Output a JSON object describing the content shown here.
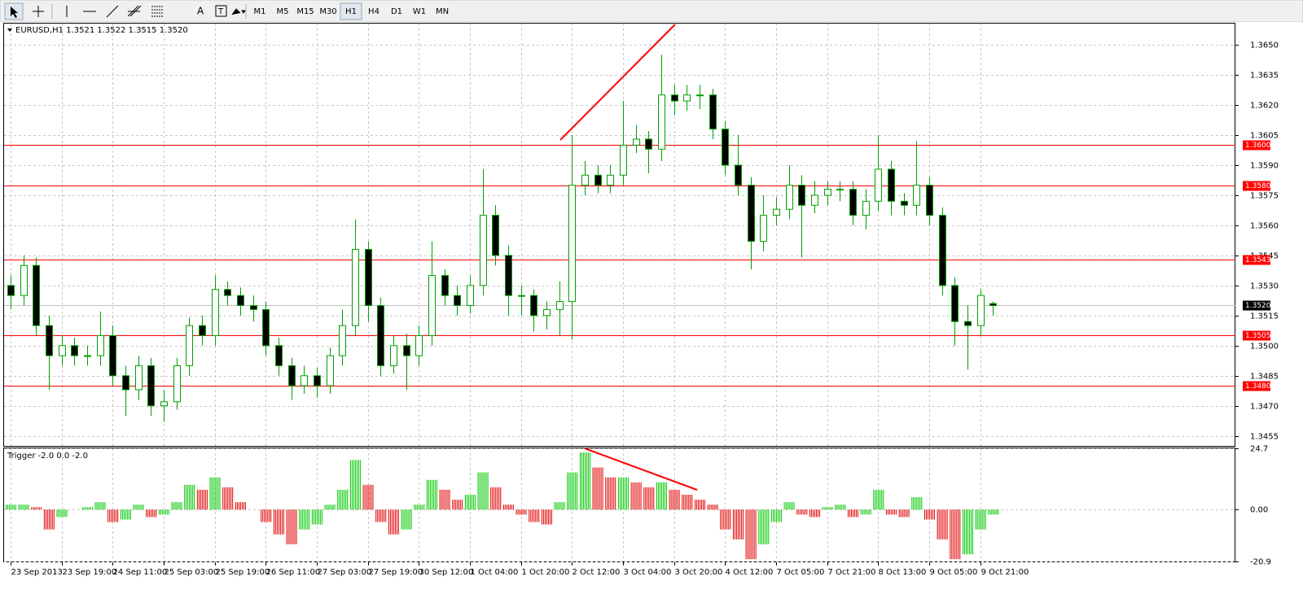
{
  "toolbar": {
    "timeframes": [
      "M1",
      "M5",
      "M15",
      "M30",
      "H1",
      "H4",
      "D1",
      "W1",
      "MN"
    ],
    "active": "H1"
  },
  "chart_data": {
    "type": "candlestick",
    "title": "EURUSD,H1  1.3521 1.3522 1.3515 1.3520",
    "xlim": [
      -0.5,
      96
    ],
    "ylim": [
      1.345,
      1.3661
    ],
    "grid": true,
    "up_fill": "#ffffff",
    "down_fill": "#000000",
    "wick_color": "#00a000",
    "xticks": [
      {
        "value": 0,
        "label": "23 Sep 2013"
      },
      {
        "value": 4,
        "label": "23 Sep 19:00"
      },
      {
        "value": 8,
        "label": "24 Sep 11:00"
      },
      {
        "value": 12,
        "label": "25 Sep 03:00"
      },
      {
        "value": 16,
        "label": "25 Sep 19:00"
      },
      {
        "value": 20,
        "label": "26 Sep 11:00"
      },
      {
        "value": 24,
        "label": "27 Sep 03:00"
      },
      {
        "value": 28,
        "label": "27 Sep 19:00"
      },
      {
        "value": 32,
        "label": "30 Sep 12:00"
      },
      {
        "value": 36,
        "label": "1 Oct 04:00"
      },
      {
        "value": 40,
        "label": "1 Oct 20:00"
      },
      {
        "value": 44,
        "label": "2 Oct 12:00"
      },
      {
        "value": 48,
        "label": "3 Oct 04:00"
      },
      {
        "value": 52,
        "label": "3 Oct 20:00"
      },
      {
        "value": 56,
        "label": "4 Oct 12:00"
      },
      {
        "value": 60,
        "label": "7 Oct 05:00"
      },
      {
        "value": 64,
        "label": "7 Oct 21:00"
      },
      {
        "value": 68,
        "label": "8 Oct 13:00"
      },
      {
        "value": 72,
        "label": "9 Oct 05:00"
      },
      {
        "value": 76,
        "label": "9 Oct 21:00"
      }
    ],
    "yticks": [
      {
        "value": 1.3455,
        "label": "1.3455"
      },
      {
        "value": 1.347,
        "label": "1.3470"
      },
      {
        "value": 1.3485,
        "label": "1.3485"
      },
      {
        "value": 1.35,
        "label": "1.3500"
      },
      {
        "value": 1.3515,
        "label": "1.3515"
      },
      {
        "value": 1.353,
        "label": "1.3530"
      },
      {
        "value": 1.3545,
        "label": "1.3545"
      },
      {
        "value": 1.356,
        "label": "1.3560"
      },
      {
        "value": 1.3575,
        "label": "1.3575"
      },
      {
        "value": 1.359,
        "label": "1.3590"
      },
      {
        "value": 1.3605,
        "label": "1.3605"
      },
      {
        "value": 1.362,
        "label": "1.3620"
      },
      {
        "value": 1.3635,
        "label": "1.3635"
      },
      {
        "value": 1.365,
        "label": "1.3650"
      }
    ],
    "levels": [
      {
        "value": 1.36,
        "label": "1.3600"
      },
      {
        "value": 1.358,
        "label": "1.3580"
      },
      {
        "value": 1.3543,
        "label": "1.3543"
      },
      {
        "value": 1.3505,
        "label": "1.3505"
      },
      {
        "value": 1.348,
        "label": "1.3480"
      }
    ],
    "level_color": "#ff0000",
    "last_price": {
      "value": 1.352,
      "label": "1.3520"
    },
    "open": [
      1.353,
      1.3525,
      1.354,
      1.351,
      1.3495,
      1.35,
      1.3495,
      1.3495,
      1.3505,
      1.3485,
      1.3478,
      1.349,
      1.347,
      1.3472,
      1.349,
      1.351,
      1.3505,
      1.3528,
      1.3525,
      1.352,
      1.3518,
      1.35,
      1.349,
      1.348,
      1.3485,
      1.348,
      1.3495,
      1.351,
      1.3548,
      1.352,
      1.349,
      1.35,
      1.3495,
      1.3505,
      1.3535,
      1.3525,
      1.352,
      1.353,
      1.3565,
      1.3545,
      1.3525,
      1.3525,
      1.3515,
      1.3518,
      1.3522,
      1.358,
      1.3585,
      1.358,
      1.3585,
      1.36,
      1.3603,
      1.3598,
      1.3625,
      1.3622,
      1.3625,
      1.3625,
      1.3608,
      1.359,
      1.358,
      1.3552,
      1.3565,
      1.3568,
      1.358,
      1.357,
      1.3575,
      1.3578,
      1.3578,
      1.3565,
      1.3572,
      1.3588,
      1.3572,
      1.357,
      1.358,
      1.3565,
      1.353,
      1.3512,
      1.351,
      1.3521
    ],
    "high": [
      1.3535,
      1.3545,
      1.3544,
      1.3515,
      1.3505,
      1.3504,
      1.35,
      1.3517,
      1.351,
      1.349,
      1.3495,
      1.3494,
      1.3478,
      1.3494,
      1.3514,
      1.3515,
      1.3535,
      1.3532,
      1.3529,
      1.3525,
      1.3522,
      1.3504,
      1.3494,
      1.349,
      1.3489,
      1.3499,
      1.3518,
      1.3563,
      1.3552,
      1.3524,
      1.3505,
      1.3506,
      1.351,
      1.3552,
      1.3538,
      1.353,
      1.3535,
      1.3588,
      1.357,
      1.355,
      1.353,
      1.3528,
      1.3522,
      1.3532,
      1.3605,
      1.3592,
      1.359,
      1.359,
      1.3622,
      1.361,
      1.3607,
      1.3645,
      1.363,
      1.363,
      1.363,
      1.3628,
      1.3612,
      1.3605,
      1.3584,
      1.3575,
      1.3574,
      1.359,
      1.3585,
      1.3582,
      1.3582,
      1.3582,
      1.3582,
      1.3578,
      1.3605,
      1.3592,
      1.3576,
      1.3602,
      1.3584,
      1.3569,
      1.3534,
      1.352,
      1.3528,
      1.3522
    ],
    "low": [
      1.3518,
      1.352,
      1.3505,
      1.3478,
      1.349,
      1.349,
      1.349,
      1.349,
      1.348,
      1.3465,
      1.3473,
      1.3465,
      1.3462,
      1.3468,
      1.3485,
      1.35,
      1.35,
      1.352,
      1.3515,
      1.3512,
      1.3495,
      1.3485,
      1.3473,
      1.3476,
      1.3474,
      1.3476,
      1.349,
      1.3505,
      1.3512,
      1.3485,
      1.3486,
      1.3478,
      1.349,
      1.35,
      1.352,
      1.3515,
      1.3516,
      1.3525,
      1.354,
      1.3515,
      1.3515,
      1.3507,
      1.3508,
      1.3505,
      1.3503,
      1.3575,
      1.3576,
      1.3576,
      1.358,
      1.3596,
      1.3586,
      1.3592,
      1.3615,
      1.3617,
      1.3618,
      1.3603,
      1.3585,
      1.3575,
      1.3538,
      1.3547,
      1.356,
      1.3563,
      1.3544,
      1.3566,
      1.357,
      1.3572,
      1.356,
      1.3558,
      1.3567,
      1.3565,
      1.3565,
      1.3565,
      1.356,
      1.3525,
      1.35,
      1.3488,
      1.3505,
      1.3515
    ],
    "close": [
      1.3525,
      1.354,
      1.351,
      1.3495,
      1.35,
      1.3495,
      1.3495,
      1.3505,
      1.3485,
      1.3478,
      1.349,
      1.347,
      1.3472,
      1.349,
      1.351,
      1.3505,
      1.3528,
      1.3525,
      1.352,
      1.3518,
      1.35,
      1.349,
      1.348,
      1.3485,
      1.348,
      1.3495,
      1.351,
      1.3548,
      1.352,
      1.349,
      1.35,
      1.3495,
      1.3505,
      1.3535,
      1.3525,
      1.352,
      1.353,
      1.3565,
      1.3545,
      1.3525,
      1.3525,
      1.3515,
      1.3518,
      1.3522,
      1.358,
      1.3585,
      1.358,
      1.3585,
      1.36,
      1.3603,
      1.3598,
      1.3625,
      1.3622,
      1.3625,
      1.3625,
      1.3608,
      1.359,
      1.358,
      1.3552,
      1.3565,
      1.3568,
      1.358,
      1.357,
      1.3575,
      1.3578,
      1.3578,
      1.3565,
      1.3572,
      1.3588,
      1.3572,
      1.357,
      1.358,
      1.3565,
      1.353,
      1.3512,
      1.351,
      1.3525,
      1.352
    ],
    "indicator": {
      "type": "histogram",
      "title": "Trigger -2.0 0.0 -2.0",
      "ylim": [
        -20.9,
        24.7
      ],
      "yticks": [
        24.7,
        {
          "value": 0,
          "label": "0.00"
        },
        -20.9
      ],
      "up_color": "#00c800",
      "down_color": "#e00000",
      "values": [
        2,
        2,
        1,
        -8,
        -3,
        0,
        1,
        3,
        -5,
        -4,
        2,
        -3,
        -2,
        3,
        10,
        8,
        13,
        9,
        3,
        0,
        -5,
        -10,
        -14,
        -8,
        -6,
        2,
        8,
        20,
        10,
        -5,
        -10,
        -8,
        2,
        12,
        8,
        4,
        6,
        15,
        9,
        2,
        -2,
        -5,
        -6,
        3,
        15,
        23,
        17,
        13,
        13,
        11,
        9,
        11,
        8,
        6,
        4,
        2,
        -8,
        -12,
        -20,
        -14,
        -5,
        3,
        -2,
        -3,
        1,
        2,
        -3,
        -2,
        8,
        -2,
        -3,
        5,
        -4,
        -12,
        -20,
        -18,
        -8,
        -2
      ]
    }
  }
}
